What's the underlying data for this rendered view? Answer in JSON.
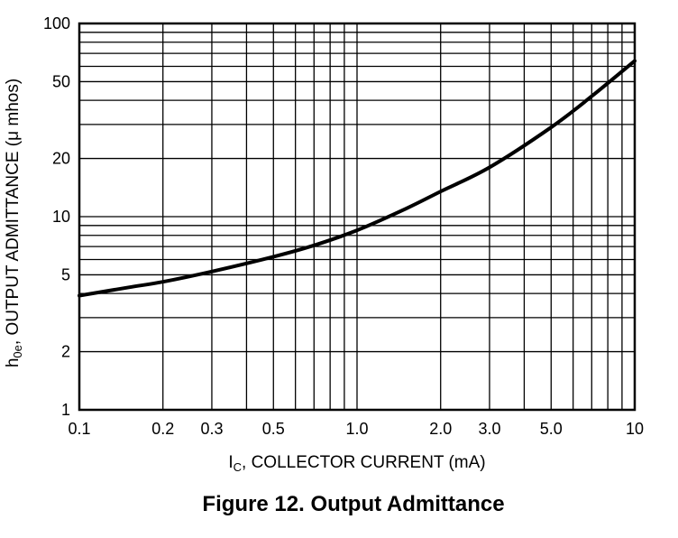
{
  "chart_data": {
    "type": "line",
    "title": "Figure 12. Output Admittance",
    "x_scale": "log",
    "y_scale": "log",
    "xlim": [
      0.1,
      10
    ],
    "ylim": [
      1,
      100
    ],
    "grid": true,
    "x_ticks": [
      "0.1",
      "0.2",
      "0.3",
      "0.5",
      "1.0",
      "2.0",
      "3.0",
      "5.0",
      "10"
    ],
    "x_tick_values": [
      0.1,
      0.2,
      0.3,
      0.5,
      1.0,
      2.0,
      3.0,
      5.0,
      10
    ],
    "y_ticks": [
      "100",
      "50",
      "20",
      "10",
      "5",
      "2",
      "1"
    ],
    "y_tick_values": [
      100,
      50,
      20,
      10,
      5,
      2,
      1
    ],
    "xlabel": {
      "main": "I",
      "sub": "C",
      "rest": ", COLLECTOR CURRENT (mA)"
    },
    "ylabel": {
      "main": "h",
      "sub": "0e",
      "rest": ", OUTPUT ADMITTANCE (μ mhos)"
    },
    "series": [
      {
        "x": [
          0.1,
          0.15,
          0.2,
          0.3,
          0.5,
          0.7,
          1.0,
          1.5,
          2.0,
          3.0,
          5.0,
          7.0,
          10.0
        ],
        "y": [
          3.9,
          4.3,
          4.6,
          5.2,
          6.2,
          7.1,
          8.5,
          11.0,
          13.5,
          18.0,
          29.0,
          42.0,
          64.0
        ]
      }
    ]
  }
}
